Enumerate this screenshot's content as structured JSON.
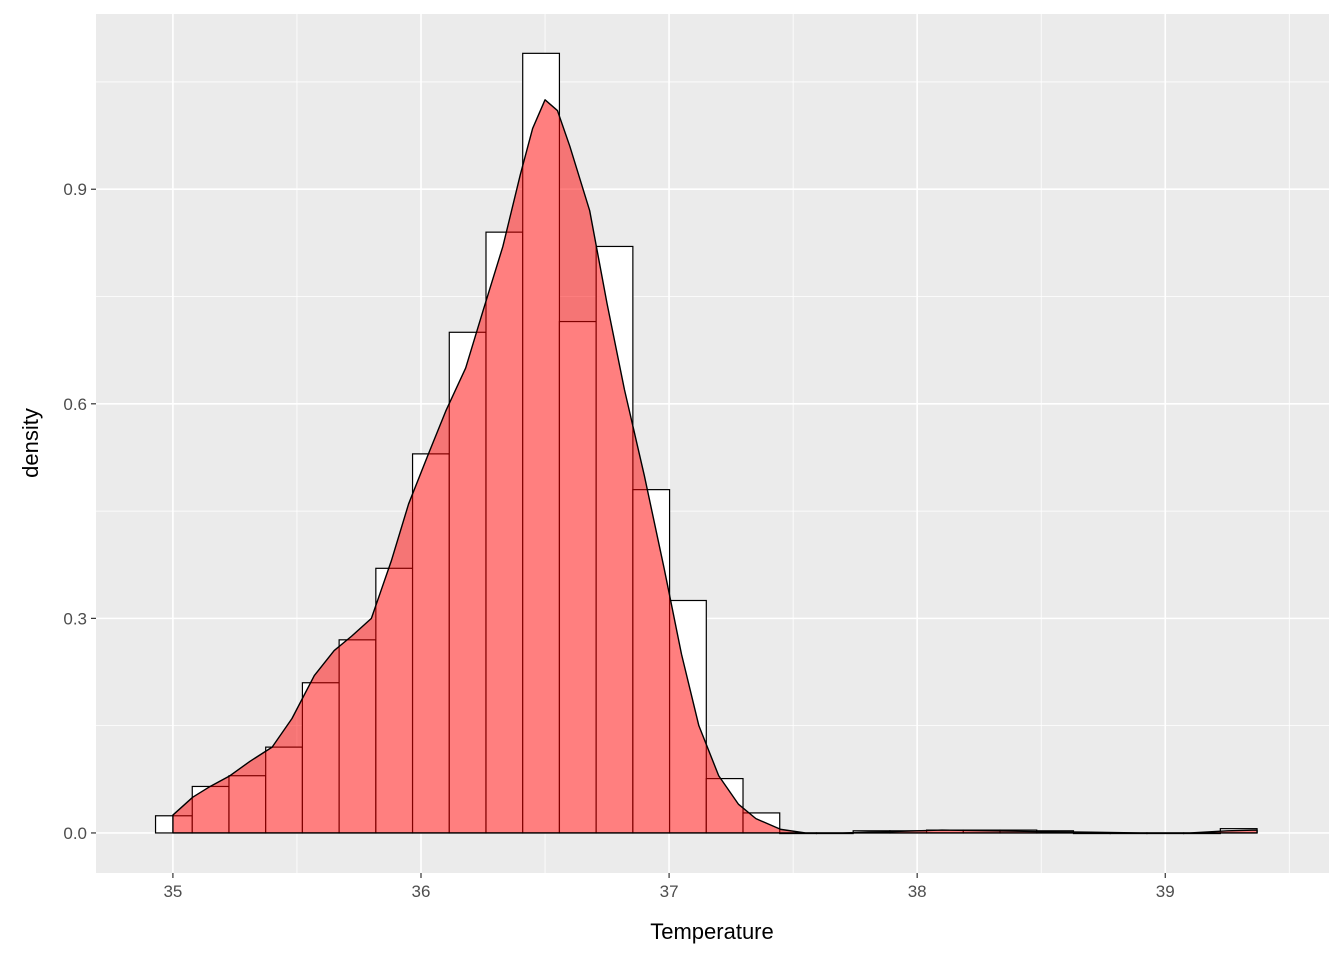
{
  "chart_data": {
    "type": "histogram",
    "title": "",
    "xlabel": "Temperature",
    "ylabel": "density",
    "xlim": [
      34.69,
      39.66
    ],
    "ylim": [
      -0.056,
      1.145
    ],
    "x_ticks": [
      35,
      36,
      37,
      38,
      39
    ],
    "x_tick_labels": [
      "35",
      "36",
      "37",
      "38",
      "39"
    ],
    "y_ticks": [
      0.0,
      0.3,
      0.6,
      0.9
    ],
    "y_tick_labels": [
      "0.0",
      "0.3",
      "0.6",
      "0.9"
    ],
    "grid": true,
    "legend": "none",
    "histogram": {
      "bin_width": 0.148,
      "bin_start": 34.93,
      "fill": "#ffffff",
      "outline": "#000000",
      "density": [
        0.024,
        0.065,
        0.08,
        0.12,
        0.21,
        0.27,
        0.37,
        0.53,
        0.7,
        0.84,
        1.09,
        0.715,
        0.82,
        0.48,
        0.325,
        0.076,
        0.028,
        0,
        0,
        0.003,
        0.003,
        0.004,
        0.004,
        0.004,
        0.003,
        0,
        0,
        0,
        0,
        0.006
      ]
    },
    "density_curve": {
      "fill": "#ff0000",
      "fill_opacity": 0.5,
      "outline": "#000000",
      "x": [
        35.0,
        35.08,
        35.15,
        35.23,
        35.31,
        35.4,
        35.48,
        35.57,
        35.65,
        35.72,
        35.8,
        35.88,
        35.95,
        36.03,
        36.1,
        36.18,
        36.25,
        36.33,
        36.4,
        36.45,
        36.5,
        36.55,
        36.6,
        36.68,
        36.75,
        36.82,
        36.9,
        36.98,
        37.05,
        37.12,
        37.2,
        37.28,
        37.35,
        37.45,
        37.55,
        37.7,
        37.9,
        38.1,
        38.3,
        38.5,
        38.7,
        38.9,
        39.1,
        39.25,
        39.37
      ],
      "y": [
        0.025,
        0.05,
        0.065,
        0.08,
        0.1,
        0.12,
        0.16,
        0.22,
        0.255,
        0.275,
        0.3,
        0.38,
        0.46,
        0.53,
        0.59,
        0.65,
        0.73,
        0.82,
        0.92,
        0.985,
        1.025,
        1.01,
        0.96,
        0.87,
        0.74,
        0.62,
        0.5,
        0.37,
        0.25,
        0.15,
        0.08,
        0.04,
        0.02,
        0.005,
        0.0,
        0.0,
        0.002,
        0.004,
        0.003,
        0.002,
        0.001,
        0.0,
        0.0,
        0.003,
        0.004
      ]
    }
  }
}
